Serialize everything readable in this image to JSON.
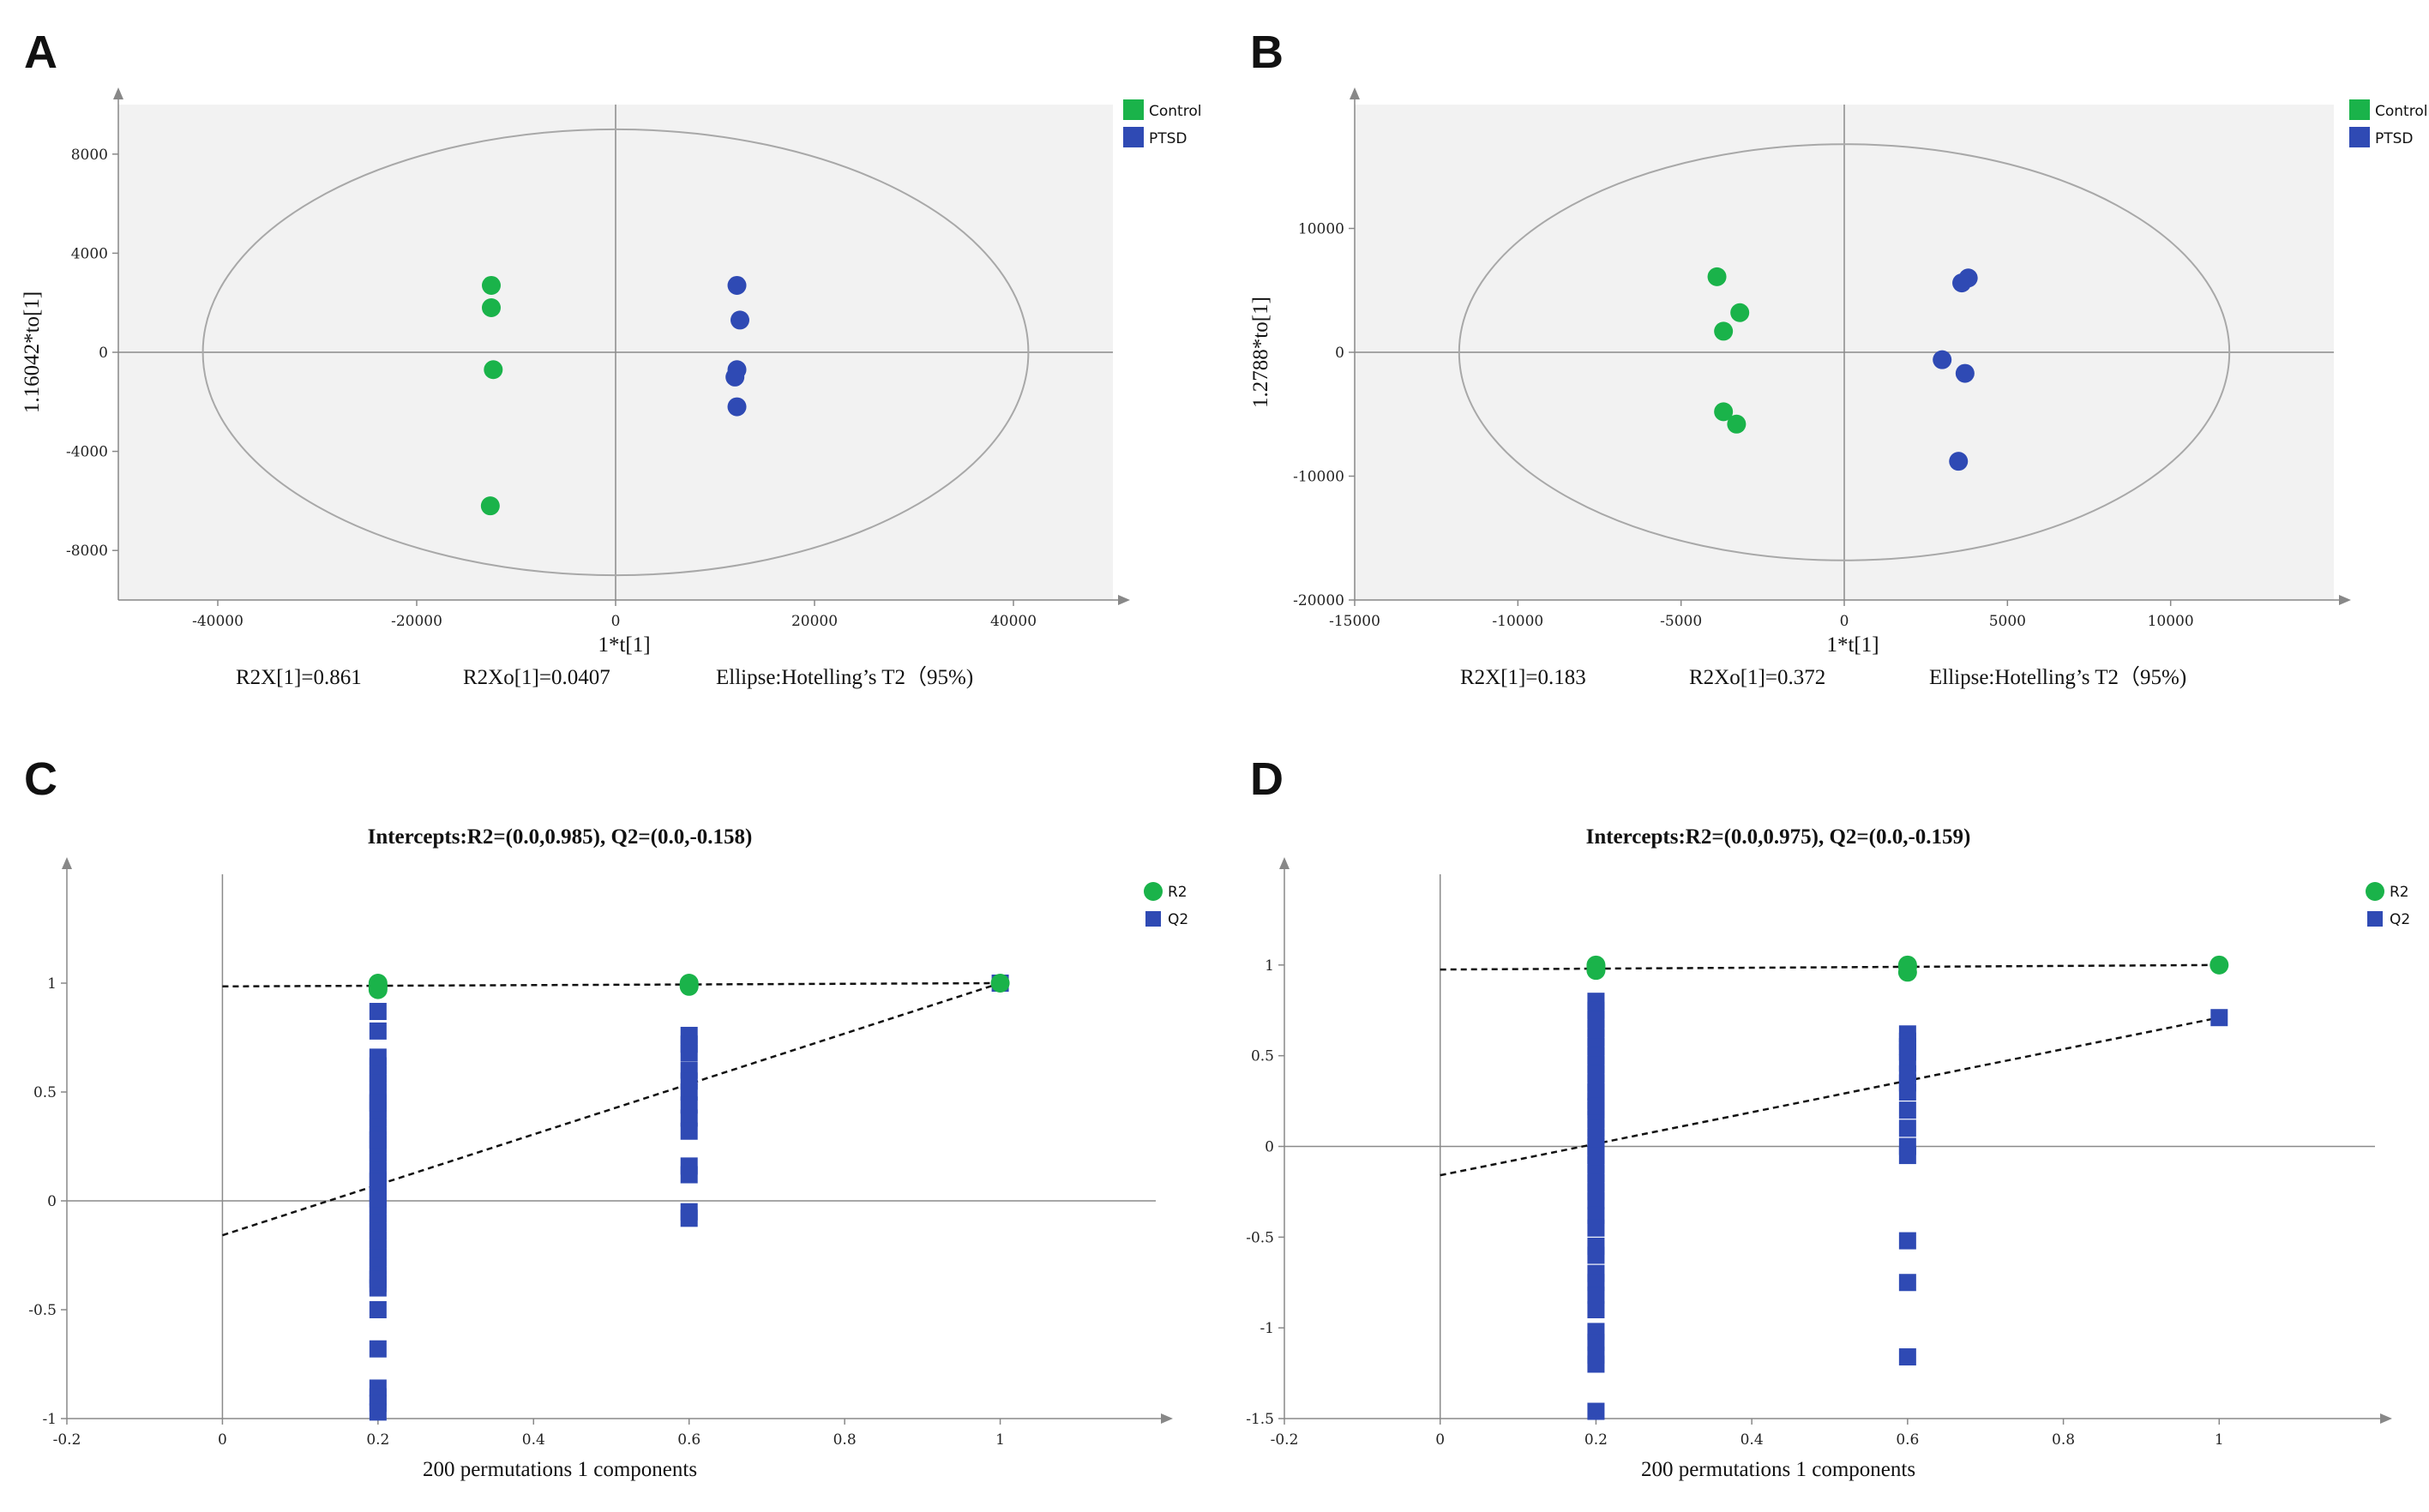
{
  "panels": {
    "A": {
      "letter": "A"
    },
    "B": {
      "letter": "B"
    },
    "C": {
      "letter": "C"
    },
    "D": {
      "letter": "D"
    }
  },
  "colors": {
    "control": "#1ab34a",
    "ptsd": "#2f4ab4",
    "plot_bg": "#f2f2f2",
    "axis": "#999999",
    "ellipse": "#a8a8a8"
  },
  "chart_data": [
    {
      "id": "A",
      "type": "scatter",
      "xlabel": "1*t[1]",
      "ylabel": "1.16042*to[1]",
      "xlim": [
        -50000,
        50000
      ],
      "ylim": [
        -10000,
        10000
      ],
      "xticks": [
        -40000,
        -20000,
        0,
        20000,
        40000
      ],
      "yticks": [
        -8000,
        -4000,
        0,
        4000,
        8000
      ],
      "xtick_labels": [
        "-40000",
        "-20000",
        "0",
        "20000",
        "40000"
      ],
      "ytick_labels": [
        "-8000",
        "-4000",
        "0",
        "4000",
        "8000"
      ],
      "ellipse": {
        "rx": 41500,
        "ry": 9000
      },
      "legend": [
        "Control",
        "PTSD"
      ],
      "series": [
        {
          "name": "Control",
          "points": [
            [
              -12500,
              2700
            ],
            [
              -12500,
              1800
            ],
            [
              -12300,
              -700
            ],
            [
              -12600,
              -6200
            ]
          ]
        },
        {
          "name": "PTSD",
          "points": [
            [
              12200,
              2700
            ],
            [
              12500,
              1300
            ],
            [
              12200,
              -700
            ],
            [
              12000,
              -1000
            ],
            [
              12200,
              -2200
            ]
          ]
        }
      ],
      "stats": {
        "r2x": "R2X[1]=0.861",
        "r2xo": "R2Xo[1]=0.0407",
        "ellipse": "Ellipse:Hotelling’s T2（95%)"
      }
    },
    {
      "id": "B",
      "type": "scatter",
      "xlabel": "1*t[1]",
      "ylabel": "1.2788*to[1]",
      "xlim": [
        -15000,
        15000
      ],
      "ylim": [
        -20000,
        20000
      ],
      "xticks": [
        -15000,
        -10000,
        -5000,
        0,
        5000,
        10000
      ],
      "yticks": [
        -20000,
        -10000,
        0,
        10000
      ],
      "xtick_labels": [
        "-15000",
        "-10000",
        "-5000",
        "0",
        "5000",
        "10000"
      ],
      "ytick_labels": [
        "-20000",
        "-10000",
        "0",
        "10000"
      ],
      "ellipse": {
        "rx": 11800,
        "ry": 16800
      },
      "legend": [
        "Control",
        "PTSD"
      ],
      "series": [
        {
          "name": "Control",
          "points": [
            [
              -3900,
              6100
            ],
            [
              -3200,
              3200
            ],
            [
              -3700,
              1700
            ],
            [
              -3700,
              -4800
            ],
            [
              -3300,
              -5800
            ]
          ]
        },
        {
          "name": "PTSD",
          "points": [
            [
              3800,
              6000
            ],
            [
              3600,
              5600
            ],
            [
              3000,
              -600
            ],
            [
              3700,
              -1700
            ],
            [
              3500,
              -8800
            ]
          ]
        }
      ],
      "stats": {
        "r2x": "R2X[1]=0.183",
        "r2xo": "R2Xo[1]=0.372",
        "ellipse": "Ellipse:Hotelling’s T2（95%)"
      }
    },
    {
      "id": "C",
      "type": "scatter",
      "title": "Intercepts:R2=(0.0,0.985), Q2=(0.0,-0.158)",
      "xlabel": "200 permutations 1 components",
      "ylabel": "",
      "xlim": [
        -0.2,
        1.2
      ],
      "ylim": [
        -1,
        1.5
      ],
      "xticks": [
        -0.2,
        0,
        0.2,
        0.4,
        0.6,
        0.8,
        1
      ],
      "yticks": [
        -1,
        -0.5,
        0,
        0.5,
        1
      ],
      "xtick_labels": [
        "-0.2",
        "0",
        "0.2",
        "0.4",
        "0.6",
        "0.8",
        "1"
      ],
      "ytick_labels": [
        "-1",
        "-0.5",
        "0",
        "0.5",
        "1"
      ],
      "legend": [
        "R2",
        "Q2"
      ],
      "lines": [
        {
          "name": "R2",
          "from": [
            0,
            0.985
          ],
          "to": [
            1,
            1.0
          ]
        },
        {
          "name": "Q2",
          "from": [
            0,
            -0.158
          ],
          "to": [
            1,
            1.0
          ]
        }
      ],
      "series": [
        {
          "name": "R2",
          "x": [
            0.2,
            0.2,
            0.2,
            0.2,
            0.6,
            0.6,
            0.6,
            1.0
          ],
          "y": [
            1.0,
            0.99,
            0.98,
            0.97,
            1.0,
            0.99,
            0.985,
            1.0
          ]
        },
        {
          "name": "Q2",
          "x": [
            0.2,
            0.2,
            0.2,
            0.2,
            0.2,
            0.2,
            0.2,
            0.2,
            0.2,
            0.2,
            0.2,
            0.2,
            0.2,
            0.2,
            0.2,
            0.2,
            0.2,
            0.2,
            0.2,
            0.2,
            0.2,
            0.2,
            0.2,
            0.2,
            0.2,
            0.2,
            0.2,
            0.2,
            0.2,
            0.2,
            0.2,
            0.2,
            0.2,
            0.2,
            0.2,
            0.2,
            0.2,
            0.2,
            0.2,
            0.2,
            0.2,
            0.6,
            0.6,
            0.6,
            0.6,
            0.6,
            0.6,
            0.6,
            0.6,
            0.6,
            0.6,
            0.6,
            0.6,
            0.6,
            1.0
          ],
          "y": [
            0.87,
            0.78,
            0.66,
            0.62,
            0.58,
            0.54,
            0.5,
            0.46,
            0.42,
            0.38,
            0.34,
            0.3,
            0.26,
            0.22,
            0.18,
            0.14,
            0.1,
            0.06,
            0.02,
            -0.02,
            -0.06,
            -0.1,
            -0.14,
            -0.18,
            -0.22,
            -0.26,
            -0.3,
            -0.34,
            -0.38,
            -0.5,
            -0.68,
            -0.86,
            -0.9,
            -0.93,
            -0.97,
            -0.4,
            -0.36,
            0.01,
            0.09,
            0.45,
            0.28,
            0.76,
            0.72,
            0.68,
            0.6,
            0.55,
            0.5,
            0.44,
            0.38,
            0.32,
            0.16,
            0.12,
            -0.05,
            -0.08,
            1.0
          ]
        }
      ]
    },
    {
      "id": "D",
      "type": "scatter",
      "title": "Intercepts:R2=(0.0,0.975), Q2=(0.0,-0.159)",
      "xlabel": "200 permutations 1 components",
      "ylabel": "",
      "xlim": [
        -0.2,
        1.2
      ],
      "ylim": [
        -1.5,
        1.5
      ],
      "xticks": [
        -0.2,
        0,
        0.2,
        0.4,
        0.6,
        0.8,
        1
      ],
      "yticks": [
        -1.5,
        -1,
        -0.5,
        0,
        0.5,
        1
      ],
      "xtick_labels": [
        "-0.2",
        "0",
        "0.2",
        "0.4",
        "0.6",
        "0.8",
        "1"
      ],
      "ytick_labels": [
        "-1.5",
        "-1",
        "-0.5",
        "0",
        "0.5",
        "1"
      ],
      "legend": [
        "R2",
        "Q2"
      ],
      "lines": [
        {
          "name": "R2",
          "from": [
            0,
            0.975
          ],
          "to": [
            1,
            1.0
          ]
        },
        {
          "name": "Q2",
          "from": [
            0,
            -0.159
          ],
          "to": [
            1,
            0.71
          ]
        }
      ],
      "series": [
        {
          "name": "R2",
          "x": [
            0.2,
            0.2,
            0.2,
            0.6,
            0.6,
            0.6,
            1.0
          ],
          "y": [
            1.0,
            0.99,
            0.97,
            1.0,
            0.99,
            0.96,
            1.0
          ]
        },
        {
          "name": "Q2",
          "x": [
            0.2,
            0.2,
            0.2,
            0.2,
            0.2,
            0.2,
            0.2,
            0.2,
            0.2,
            0.2,
            0.2,
            0.2,
            0.2,
            0.2,
            0.2,
            0.2,
            0.2,
            0.2,
            0.2,
            0.2,
            0.2,
            0.2,
            0.2,
            0.2,
            0.2,
            0.2,
            0.2,
            0.2,
            0.2,
            0.2,
            0.2,
            0.2,
            0.2,
            0.2,
            0.2,
            0.2,
            0.2,
            0.2,
            0.2,
            0.6,
            0.6,
            0.6,
            0.6,
            0.6,
            0.6,
            0.6,
            0.6,
            0.6,
            0.6,
            0.6,
            0.6,
            0.6,
            0.6,
            0.6,
            1.0
          ],
          "y": [
            0.8,
            0.75,
            0.7,
            0.65,
            0.6,
            0.55,
            0.5,
            0.45,
            0.4,
            0.35,
            0.3,
            0.25,
            0.2,
            0.15,
            0.1,
            0.05,
            0.0,
            -0.05,
            -0.1,
            -0.15,
            -0.2,
            -0.25,
            -0.3,
            -0.38,
            -0.45,
            -0.55,
            -0.6,
            -0.7,
            -0.75,
            -0.82,
            -0.9,
            -1.02,
            -1.08,
            -1.15,
            -1.2,
            -1.46,
            -0.05,
            0.3,
            0.22,
            0.62,
            0.58,
            0.52,
            0.46,
            0.4,
            0.35,
            0.3,
            0.2,
            0.1,
            0.0,
            -0.05,
            -0.52,
            -0.75,
            -1.16,
            0.55,
            0.71
          ]
        }
      ]
    }
  ]
}
